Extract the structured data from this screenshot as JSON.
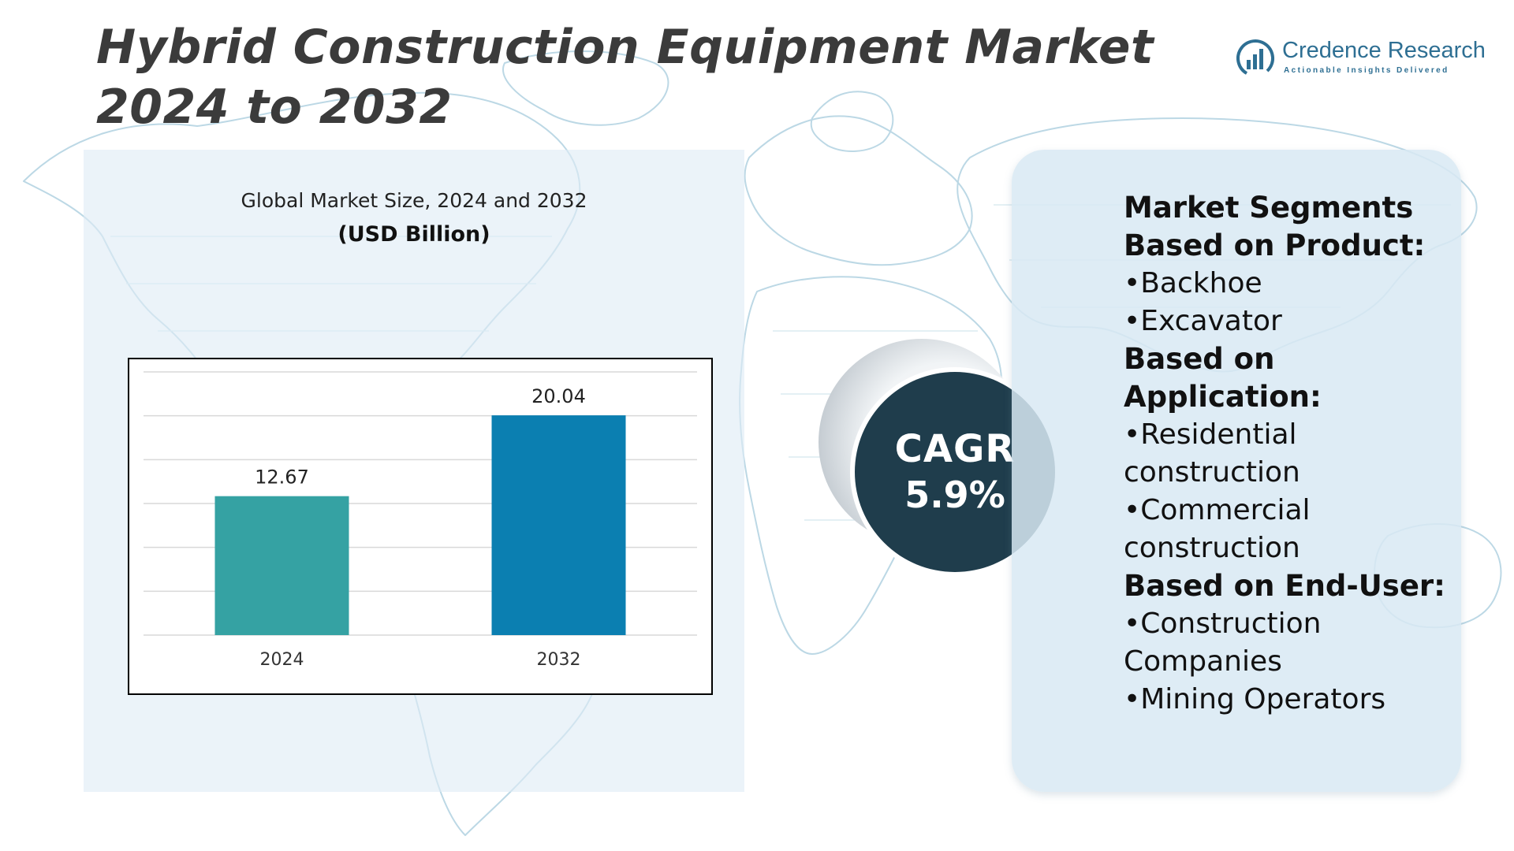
{
  "title": "Hybrid Construction Equipment Market 2024 to 2032",
  "logo": {
    "name": "Credence Research",
    "tagline": "Actionable Insights Delivered"
  },
  "colors": {
    "bar_2024": "#35a2a3",
    "bar_2032": "#0b7fb1",
    "cagr_circle": "#1f3d4c",
    "title_text": "#3b3b3b",
    "map_lines": "#b9d6e3"
  },
  "chart_data": {
    "type": "bar",
    "title": "Global Market Size, 2024 and 2032",
    "unit_label": "(USD Billion)",
    "categories": [
      "2024",
      "2032"
    ],
    "values": [
      12.67,
      20.04
    ],
    "data_labels": [
      "12.67",
      "20.04"
    ],
    "ylim": [
      0,
      24
    ],
    "grid": true,
    "legend": "none"
  },
  "cagr": {
    "label": "CAGR",
    "value": "5.9%"
  },
  "segments": [
    {
      "type": "heading",
      "text": "Market Segments"
    },
    {
      "type": "heading",
      "text": "Based on Product:"
    },
    {
      "type": "item",
      "text": "Backhoe"
    },
    {
      "type": "item",
      "text": "Excavator"
    },
    {
      "type": "heading",
      "text": "Based on Application:"
    },
    {
      "type": "item",
      "text": "Residential construction"
    },
    {
      "type": "item",
      "text": "Commercial construction"
    },
    {
      "type": "heading",
      "text": "Based on End-User:"
    },
    {
      "type": "item",
      "text": "Construction Companies"
    },
    {
      "type": "item",
      "text": "Mining Operators"
    }
  ]
}
